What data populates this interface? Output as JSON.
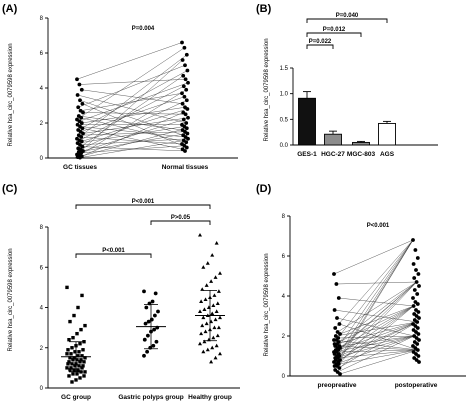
{
  "chart_data": [
    {
      "panel": "(A)",
      "type": "scatter",
      "style": "paired dot plot",
      "ylabel": "Relative hsa_circ_0079598 expression",
      "ylim": [
        0,
        8
      ],
      "yticks": [
        "0",
        "2",
        "4",
        "6",
        "8"
      ],
      "categories": [
        "GC tissues",
        "Normal tissues"
      ],
      "pvalues": [
        "P=0.004"
      ],
      "series": [
        {
          "values": [
            4.5,
            4.2,
            3.9,
            3.6,
            3.3,
            3.1,
            2.9,
            2.7,
            2.6,
            2.4,
            2.3,
            2.2,
            2.1,
            2.0,
            1.9,
            1.8,
            1.7,
            1.6,
            1.5,
            1.4,
            1.3,
            1.2,
            1.1,
            1.0,
            0.95,
            0.85,
            0.75,
            0.65,
            0.55,
            0.5,
            0.4,
            0.35,
            0.3,
            0.2,
            0.15,
            0.1,
            0.05,
            0.02
          ]
        },
        {
          "values": [
            6.6,
            6.3,
            5.9,
            5.6,
            5.3,
            5.0,
            4.7,
            4.5,
            4.3,
            4.1,
            3.9,
            3.7,
            3.5,
            3.3,
            3.1,
            2.9,
            2.8,
            2.6,
            2.5,
            2.3,
            2.2,
            2.0,
            1.9,
            1.8,
            1.7,
            1.6,
            1.5,
            1.4,
            1.3,
            1.2,
            1.1,
            1.0,
            0.9,
            0.8,
            0.7,
            0.6,
            0.5,
            0.4
          ]
        }
      ]
    },
    {
      "panel": "(B)",
      "type": "bar",
      "ylabel": "Relative hsa_circ_0079598 expression",
      "ylim": [
        0,
        1.5
      ],
      "yticks": [
        "0.0",
        "0.5",
        "1.0",
        "1.5"
      ],
      "categories": [
        "GES-1",
        "HGC-27",
        "MGC-803",
        "AGS"
      ],
      "values": [
        0.91,
        0.21,
        0.05,
        0.42
      ],
      "errors": [
        0.13,
        0.06,
        0.02,
        0.04
      ],
      "colors": [
        "#111111",
        "#8c8c8c",
        "#8c8c8c",
        "#ffffff"
      ],
      "pvalues": [
        "P=0.022",
        "P=0.012",
        "P=0.040"
      ]
    },
    {
      "panel": "(C)",
      "type": "scatter",
      "style": "dot plot with mean ± SD",
      "ylabel": "Relative hsa_circ_0079598 expression",
      "ylim": [
        0,
        8
      ],
      "yticks": [
        "0",
        "2",
        "4",
        "6",
        "8"
      ],
      "categories": [
        "GC group",
        "Gastric polyps group",
        "Healthy group"
      ],
      "means": [
        1.55,
        3.05,
        3.6
      ],
      "sds": [
        0.75,
        1.1,
        1.25
      ],
      "pvalues": [
        "P<0.001",
        "P>0.05",
        "P<0.001"
      ],
      "series": [
        {
          "values": [
            5.0,
            4.6,
            4.0,
            3.6,
            3.3,
            3.1,
            2.9,
            2.7,
            2.5,
            2.4,
            2.3,
            2.2,
            2.1,
            2.0,
            1.9,
            1.9,
            1.8,
            1.8,
            1.7,
            1.7,
            1.6,
            1.6,
            1.5,
            1.5,
            1.5,
            1.4,
            1.4,
            1.4,
            1.3,
            1.3,
            1.3,
            1.2,
            1.2,
            1.2,
            1.1,
            1.1,
            1.1,
            1.0,
            1.0,
            1.0,
            0.9,
            0.9,
            0.9,
            0.8,
            0.8,
            0.7,
            0.7,
            0.6,
            0.6,
            0.5,
            0.4,
            0.3
          ]
        },
        {
          "values": [
            4.8,
            4.7,
            4.3,
            4.2,
            4.0,
            3.8,
            3.6,
            3.4,
            3.3,
            3.2,
            3.0,
            2.9,
            2.8,
            2.6,
            2.4,
            2.3,
            2.1,
            2.0,
            1.8,
            1.6
          ]
        },
        {
          "values": [
            7.6,
            7.2,
            6.6,
            6.2,
            6.0,
            5.7,
            5.5,
            5.3,
            5.1,
            4.9,
            4.8,
            4.6,
            4.5,
            4.4,
            4.3,
            4.2,
            4.1,
            4.0,
            3.9,
            3.8,
            3.8,
            3.7,
            3.6,
            3.5,
            3.5,
            3.4,
            3.3,
            3.2,
            3.1,
            3.0,
            3.0,
            2.9,
            2.8,
            2.7,
            2.6,
            2.5,
            2.4,
            2.3,
            2.2,
            2.1,
            2.0,
            1.9,
            1.8,
            1.7,
            1.5,
            1.3
          ]
        }
      ]
    },
    {
      "panel": "(D)",
      "type": "scatter",
      "style": "paired dot plot",
      "ylabel": "Relative hsa_circ_0079598 expression",
      "ylim": [
        0,
        8
      ],
      "yticks": [
        "0",
        "2",
        "4",
        "6",
        "8"
      ],
      "categories": [
        "preopreative",
        "postoperative"
      ],
      "pvalues": [
        "P<0.001"
      ],
      "series": [
        {
          "values": [
            5.1,
            4.6,
            3.9,
            3.3,
            2.9,
            2.6,
            2.4,
            2.2,
            2.1,
            2.0,
            1.9,
            1.8,
            1.8,
            1.7,
            1.6,
            1.6,
            1.5,
            1.5,
            1.4,
            1.4,
            1.3,
            1.3,
            1.2,
            1.2,
            1.1,
            1.1,
            1.0,
            1.0,
            0.9,
            0.9,
            0.8,
            0.8,
            0.7,
            0.7,
            0.6,
            0.6,
            0.5,
            0.5,
            0.4,
            0.3,
            0.2,
            0.1
          ]
        },
        {
          "values": [
            6.8,
            6.3,
            5.9,
            5.6,
            5.3,
            5.1,
            4.9,
            4.7,
            4.5,
            4.3,
            4.1,
            3.9,
            3.7,
            3.6,
            3.5,
            3.3,
            3.2,
            3.1,
            3.0,
            2.9,
            2.8,
            2.7,
            2.6,
            2.5,
            2.4,
            2.3,
            2.2,
            2.1,
            2.0,
            1.9,
            1.8,
            1.7,
            1.6,
            1.5,
            1.4,
            1.3,
            1.2,
            1.1,
            1.0,
            0.9,
            0.8,
            0.7
          ]
        }
      ]
    }
  ]
}
